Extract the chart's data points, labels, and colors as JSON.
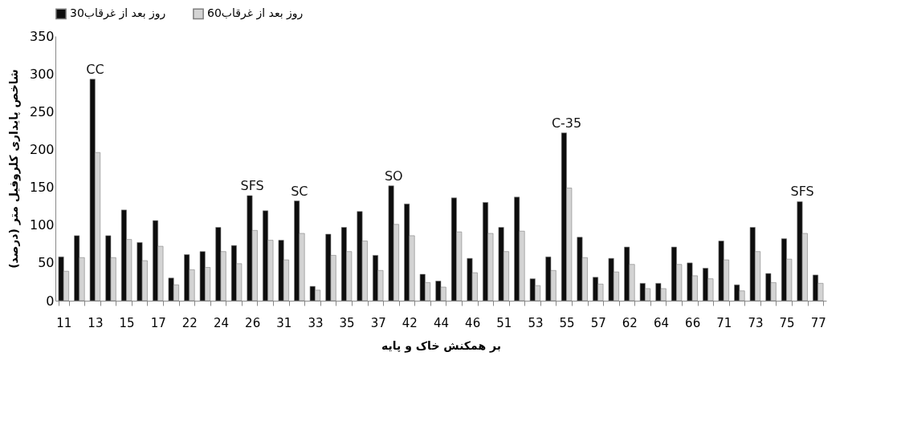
{
  "chart_data": {
    "type": "bar",
    "xlabel": "بر همکنش خاک و پایه",
    "ylabel": "شاخص پایداری کلروفیل متر (درصد)",
    "categories": [
      "11",
      null,
      "13",
      null,
      "15",
      null,
      "17",
      null,
      "22",
      null,
      "24",
      null,
      "26",
      null,
      "31",
      null,
      "33",
      null,
      "35",
      null,
      "37",
      null,
      "42",
      null,
      "44",
      null,
      "46",
      null,
      "51",
      null,
      "53",
      null,
      "55",
      null,
      "57",
      null,
      "62",
      null,
      "64",
      null,
      "66",
      null,
      "71",
      null,
      "73",
      null,
      "75",
      null,
      "77"
    ],
    "series": [
      {
        "name": "30روز بعد از غرقاب",
        "color": "#0d0d0d",
        "values": [
          58,
          86,
          293,
          86,
          120,
          77,
          106,
          30,
          61,
          65,
          97,
          73,
          139,
          119,
          80,
          132,
          19,
          88,
          97,
          118,
          60,
          152,
          128,
          35,
          26,
          136,
          56,
          130,
          97,
          137,
          29,
          58,
          222,
          84,
          31,
          56,
          71,
          23,
          23,
          71,
          50,
          43,
          79,
          21,
          97,
          36,
          82,
          131,
          34
        ]
      },
      {
        "name": "60روز بعد از غرقاب",
        "color": "#d4d4d4",
        "values": [
          39,
          57,
          196,
          57,
          81,
          53,
          72,
          21,
          41,
          44,
          65,
          49,
          93,
          80,
          54,
          89,
          14,
          60,
          65,
          79,
          40,
          101,
          86,
          24,
          18,
          91,
          37,
          89,
          65,
          92,
          20,
          40,
          149,
          57,
          22,
          38,
          48,
          16,
          16,
          48,
          33,
          29,
          54,
          13,
          65,
          24,
          55,
          89,
          23
        ]
      }
    ],
    "ylim": [
      0,
      350
    ],
    "yticks": [
      0,
      50,
      100,
      150,
      200,
      250,
      300,
      350
    ],
    "grid": false,
    "legend": "top",
    "annotations": [
      {
        "text": "CC",
        "x": "13",
        "y": 293
      },
      {
        "text": "SFS",
        "x": "26",
        "y": 139
      },
      {
        "text": "SC",
        "y": 132
      },
      {
        "text": "SO",
        "y": 152
      },
      {
        "text": "C-35",
        "x": "55",
        "y": 222
      },
      {
        "text": "SFS",
        "y": 131
      }
    ]
  }
}
